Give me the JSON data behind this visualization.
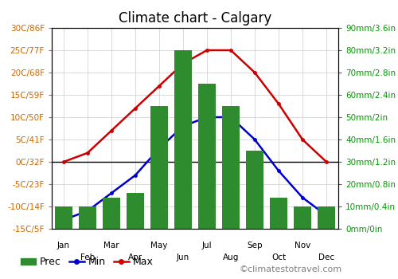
{
  "title": "Climate chart - Calgary",
  "months": [
    "Jan",
    "Feb",
    "Mar",
    "Apr",
    "May",
    "Jun",
    "Jul",
    "Aug",
    "Sep",
    "Oct",
    "Nov",
    "Dec"
  ],
  "prec_mm": [
    10,
    10,
    14,
    16,
    55,
    80,
    65,
    55,
    35,
    14,
    10,
    10
  ],
  "temp_min": [
    -13,
    -11,
    -7,
    -3,
    3,
    8,
    10,
    10,
    5,
    -2,
    -8,
    -12
  ],
  "temp_max": [
    0,
    2,
    7,
    12,
    17,
    22,
    25,
    25,
    20,
    13,
    5,
    0
  ],
  "temp_ylim": [
    -15,
    30
  ],
  "prec_ylim": [
    0,
    90
  ],
  "temp_yticks": [
    -15,
    -10,
    -5,
    0,
    5,
    10,
    15,
    20,
    25,
    30
  ],
  "temp_yticklabels": [
    "-15C/5F",
    "-10C/14F",
    "-5C/23F",
    "0C/32F",
    "5C/41F",
    "10C/50F",
    "15C/59F",
    "20C/68F",
    "25C/77F",
    "30C/86F"
  ],
  "prec_yticks": [
    0,
    10,
    20,
    30,
    40,
    50,
    60,
    70,
    80,
    90
  ],
  "prec_yticklabels": [
    "0mm/0in",
    "10mm/0.4in",
    "20mm/0.8in",
    "30mm/1.2in",
    "40mm/1.6in",
    "50mm/2in",
    "60mm/2.4in",
    "70mm/2.8in",
    "80mm/3.2in",
    "90mm/3.6in"
  ],
  "bar_color": "#2e8b2e",
  "min_color": "#0000cc",
  "max_color": "#cc0000",
  "left_tick_color": "#cc6600",
  "right_tick_color": "#009900",
  "grid_color": "#cccccc",
  "bg_color": "#ffffff",
  "watermark": "©climatestotravel.com",
  "title_fontsize": 12,
  "tick_fontsize": 7.5,
  "legend_fontsize": 9
}
